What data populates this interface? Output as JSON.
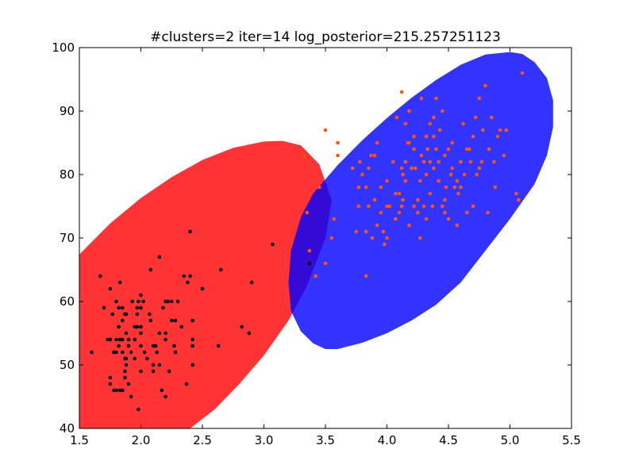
{
  "chart_data": {
    "type": "scatter",
    "title": "#clusters=2 iter=14 log_posterior=215.257251123",
    "xlabel": "",
    "ylabel": "",
    "xlim": [
      1.5,
      5.5
    ],
    "ylim": [
      40,
      100
    ],
    "xticks": [
      1.5,
      2.0,
      2.5,
      3.0,
      3.5,
      4.0,
      4.5,
      5.0,
      5.5
    ],
    "yticks": [
      40,
      50,
      60,
      70,
      80,
      90,
      100
    ],
    "xtick_labels": [
      "1.5",
      "2.0",
      "2.5",
      "3.0",
      "3.5",
      "4.0",
      "4.5",
      "5.0",
      "5.5"
    ],
    "ytick_labels": [
      "40",
      "50",
      "60",
      "70",
      "80",
      "90",
      "100"
    ],
    "grid": false,
    "legend": "none",
    "clusters": [
      {
        "color": "#ff0000",
        "point_color": "#000000",
        "ellipse": {
          "cx": 2.23,
          "cy": 56.1,
          "rx": 1.05,
          "ry": 35.5,
          "opacity": 0.8
        },
        "ellipse_path": [
          [
            1.5,
            67.4
          ],
          [
            1.75,
            72.3
          ],
          [
            2.0,
            76.3
          ],
          [
            2.25,
            79.6
          ],
          [
            2.5,
            82.3
          ],
          [
            2.75,
            84.2
          ],
          [
            3.0,
            85.2
          ],
          [
            3.15,
            85.3
          ],
          [
            3.3,
            84.6
          ],
          [
            3.45,
            81.6
          ],
          [
            3.55,
            76.0
          ],
          [
            3.5,
            70.0
          ],
          [
            3.35,
            62.5
          ],
          [
            3.2,
            57.0
          ],
          [
            3.0,
            51.5
          ],
          [
            2.8,
            47.0
          ],
          [
            2.6,
            43.0
          ],
          [
            2.4,
            40.0
          ],
          [
            1.5,
            40.0
          ]
        ],
        "points": [
          [
            1.6,
            52
          ],
          [
            1.67,
            64
          ],
          [
            1.7,
            59
          ],
          [
            1.73,
            54
          ],
          [
            1.75,
            48
          ],
          [
            1.75,
            47
          ],
          [
            1.75,
            54
          ],
          [
            1.75,
            62
          ],
          [
            1.77,
            58
          ],
          [
            1.78,
            46
          ],
          [
            1.78,
            52
          ],
          [
            1.8,
            46
          ],
          [
            1.8,
            52
          ],
          [
            1.8,
            54
          ],
          [
            1.8,
            60
          ],
          [
            1.82,
            59
          ],
          [
            1.82,
            56
          ],
          [
            1.82,
            53
          ],
          [
            1.83,
            54
          ],
          [
            1.83,
            63
          ],
          [
            1.83,
            46
          ],
          [
            1.85,
            57
          ],
          [
            1.85,
            54
          ],
          [
            1.85,
            52
          ],
          [
            1.85,
            59
          ],
          [
            1.85,
            46
          ],
          [
            1.87,
            58
          ],
          [
            1.87,
            51
          ],
          [
            1.87,
            49
          ],
          [
            1.87,
            48
          ],
          [
            1.88,
            51
          ],
          [
            1.88,
            55
          ],
          [
            1.88,
            50
          ],
          [
            1.88,
            58
          ],
          [
            1.9,
            54
          ],
          [
            1.9,
            53
          ],
          [
            1.9,
            47
          ],
          [
            1.92,
            45
          ],
          [
            1.92,
            52
          ],
          [
            1.93,
            60
          ],
          [
            1.95,
            51
          ],
          [
            1.95,
            54
          ],
          [
            1.95,
            56
          ],
          [
            1.97,
            59
          ],
          [
            1.97,
            58
          ],
          [
            1.97,
            56
          ],
          [
            1.98,
            43
          ],
          [
            1.98,
            60
          ],
          [
            2.0,
            55
          ],
          [
            2.0,
            49
          ],
          [
            2.0,
            53
          ],
          [
            2.0,
            56
          ],
          [
            2.0,
            61
          ],
          [
            2.0,
            59
          ],
          [
            2.02,
            60
          ],
          [
            2.03,
            52
          ],
          [
            2.05,
            51
          ],
          [
            2.07,
            58
          ],
          [
            2.08,
            65
          ],
          [
            2.08,
            57
          ],
          [
            2.1,
            49
          ],
          [
            2.1,
            50
          ],
          [
            2.1,
            53
          ],
          [
            2.12,
            53
          ],
          [
            2.13,
            52
          ],
          [
            2.15,
            67
          ],
          [
            2.15,
            50
          ],
          [
            2.15,
            55
          ],
          [
            2.17,
            46
          ],
          [
            2.18,
            59
          ],
          [
            2.2,
            54
          ],
          [
            2.2,
            55
          ],
          [
            2.2,
            45
          ],
          [
            2.2,
            60
          ],
          [
            2.22,
            60
          ],
          [
            2.23,
            49
          ],
          [
            2.25,
            57
          ],
          [
            2.25,
            60
          ],
          [
            2.27,
            53
          ],
          [
            2.28,
            57
          ],
          [
            2.28,
            52
          ],
          [
            2.3,
            60
          ],
          [
            2.33,
            56
          ],
          [
            2.35,
            64
          ],
          [
            2.37,
            47
          ],
          [
            2.38,
            63
          ],
          [
            2.4,
            71
          ],
          [
            2.4,
            64
          ],
          [
            2.42,
            57
          ],
          [
            2.42,
            53
          ],
          [
            2.42,
            54
          ],
          [
            2.42,
            50
          ],
          [
            2.5,
            62
          ],
          [
            2.63,
            53
          ],
          [
            2.65,
            65
          ],
          [
            2.82,
            56
          ],
          [
            2.88,
            55
          ],
          [
            2.9,
            63
          ],
          [
            3.07,
            69
          ],
          [
            3.37,
            66
          ]
        ]
      },
      {
        "color": "#0000ff",
        "point_color": "#ff5500",
        "ellipse": {
          "cx": 4.31,
          "cy": 79.9,
          "rx": 1.2,
          "ry": 28.0,
          "opacity": 0.8
        },
        "ellipse_path": [
          [
            3.3,
            73.3
          ],
          [
            3.4,
            77.0
          ],
          [
            3.6,
            81.5
          ],
          [
            3.8,
            85.4
          ],
          [
            4.0,
            88.9
          ],
          [
            4.2,
            92.1
          ],
          [
            4.4,
            94.9
          ],
          [
            4.6,
            97.3
          ],
          [
            4.8,
            98.9
          ],
          [
            5.0,
            99.3
          ],
          [
            5.1,
            99.0
          ],
          [
            5.2,
            97.7
          ],
          [
            5.3,
            95.2
          ],
          [
            5.35,
            91.7
          ],
          [
            5.35,
            87.5
          ],
          [
            5.3,
            83.0
          ],
          [
            5.2,
            78.5
          ],
          [
            5.0,
            73.0
          ],
          [
            4.8,
            68.0
          ],
          [
            4.6,
            63.0
          ],
          [
            4.4,
            59.5
          ],
          [
            4.2,
            57.0
          ],
          [
            4.0,
            55.0
          ],
          [
            3.8,
            53.5
          ],
          [
            3.6,
            52.5
          ],
          [
            3.5,
            52.5
          ],
          [
            3.4,
            53.4
          ],
          [
            3.3,
            55.3
          ],
          [
            3.22,
            58.5
          ],
          [
            3.2,
            63.0
          ],
          [
            3.22,
            68.0
          ]
        ],
        "points": [
          [
            3.33,
            83
          ],
          [
            3.35,
            74
          ],
          [
            3.37,
            68
          ],
          [
            3.42,
            64
          ],
          [
            3.45,
            78
          ],
          [
            3.5,
            66
          ],
          [
            3.5,
            87
          ],
          [
            3.55,
            70
          ],
          [
            3.57,
            73
          ],
          [
            3.6,
            83
          ],
          [
            3.6,
            85
          ],
          [
            3.72,
            81
          ],
          [
            3.75,
            71
          ],
          [
            3.77,
            78
          ],
          [
            3.77,
            75
          ],
          [
            3.78,
            82
          ],
          [
            3.8,
            80
          ],
          [
            3.83,
            71
          ],
          [
            3.83,
            64
          ],
          [
            3.85,
            75
          ],
          [
            3.85,
            81
          ],
          [
            3.87,
            83
          ],
          [
            3.88,
            70
          ],
          [
            3.9,
            83
          ],
          [
            3.92,
            72
          ],
          [
            3.92,
            85
          ],
          [
            3.95,
            74
          ],
          [
            3.97,
            71
          ],
          [
            3.98,
            69
          ],
          [
            4.0,
            70
          ],
          [
            4.0,
            79
          ],
          [
            4.02,
            75
          ],
          [
            4.05,
            82
          ],
          [
            4.07,
            77
          ],
          [
            4.08,
            89
          ],
          [
            4.1,
            74
          ],
          [
            4.1,
            77
          ],
          [
            4.12,
            81
          ],
          [
            4.13,
            76
          ],
          [
            4.13,
            80
          ],
          [
            4.15,
            79
          ],
          [
            4.15,
            82
          ],
          [
            4.17,
            85
          ],
          [
            4.18,
            90
          ],
          [
            4.18,
            85
          ],
          [
            4.2,
            81
          ],
          [
            4.22,
            84
          ],
          [
            4.22,
            86
          ],
          [
            4.23,
            81
          ],
          [
            4.25,
            76
          ],
          [
            4.25,
            74
          ],
          [
            4.27,
            79
          ],
          [
            4.28,
            83
          ],
          [
            4.3,
            75
          ],
          [
            4.3,
            82
          ],
          [
            4.32,
            80
          ],
          [
            4.33,
            84
          ],
          [
            4.35,
            82
          ],
          [
            4.35,
            77
          ],
          [
            4.37,
            75
          ],
          [
            4.38,
            81
          ],
          [
            4.38,
            89
          ],
          [
            4.4,
            84
          ],
          [
            4.42,
            82
          ],
          [
            4.42,
            79
          ],
          [
            4.43,
            87
          ],
          [
            4.45,
            90
          ],
          [
            4.45,
            75
          ],
          [
            4.47,
            83
          ],
          [
            4.47,
            76
          ],
          [
            4.48,
            78
          ],
          [
            4.5,
            73
          ],
          [
            4.5,
            84
          ],
          [
            4.52,
            80
          ],
          [
            4.53,
            81
          ],
          [
            4.53,
            85
          ],
          [
            4.55,
            78
          ],
          [
            4.57,
            79
          ],
          [
            4.58,
            77
          ],
          [
            4.6,
            82
          ],
          [
            4.6,
            78
          ],
          [
            4.62,
            88
          ],
          [
            4.63,
            80
          ],
          [
            4.65,
            74
          ],
          [
            4.65,
            84
          ],
          [
            4.67,
            84
          ],
          [
            4.68,
            82
          ],
          [
            4.7,
            75
          ],
          [
            4.7,
            86
          ],
          [
            4.72,
            89
          ],
          [
            4.73,
            80
          ],
          [
            4.75,
            81
          ],
          [
            4.75,
            92
          ],
          [
            4.77,
            82
          ],
          [
            4.78,
            87
          ],
          [
            4.8,
            94
          ],
          [
            4.82,
            74
          ],
          [
            4.83,
            84
          ],
          [
            4.85,
            89
          ],
          [
            4.87,
            82
          ],
          [
            4.88,
            78
          ],
          [
            4.9,
            86
          ],
          [
            4.92,
            87
          ],
          [
            5.05,
            77
          ],
          [
            5.07,
            76
          ],
          [
            5.1,
            96
          ],
          [
            4.95,
            83
          ],
          [
            4.97,
            87
          ],
          [
            4.57,
            72
          ],
          [
            4.47,
            74
          ],
          [
            4.32,
            73
          ],
          [
            4.27,
            70
          ],
          [
            4.22,
            75
          ],
          [
            4.18,
            72
          ],
          [
            4.12,
            75
          ],
          [
            4.07,
            73
          ],
          [
            4.0,
            75
          ],
          [
            3.95,
            78
          ],
          [
            3.9,
            76
          ],
          [
            3.83,
            78
          ],
          [
            4.4,
            92
          ],
          [
            4.38,
            86
          ],
          [
            4.35,
            88
          ],
          [
            4.32,
            86
          ],
          [
            4.28,
            92
          ],
          [
            4.12,
            93
          ],
          [
            4.15,
            88
          ]
        ]
      }
    ]
  }
}
